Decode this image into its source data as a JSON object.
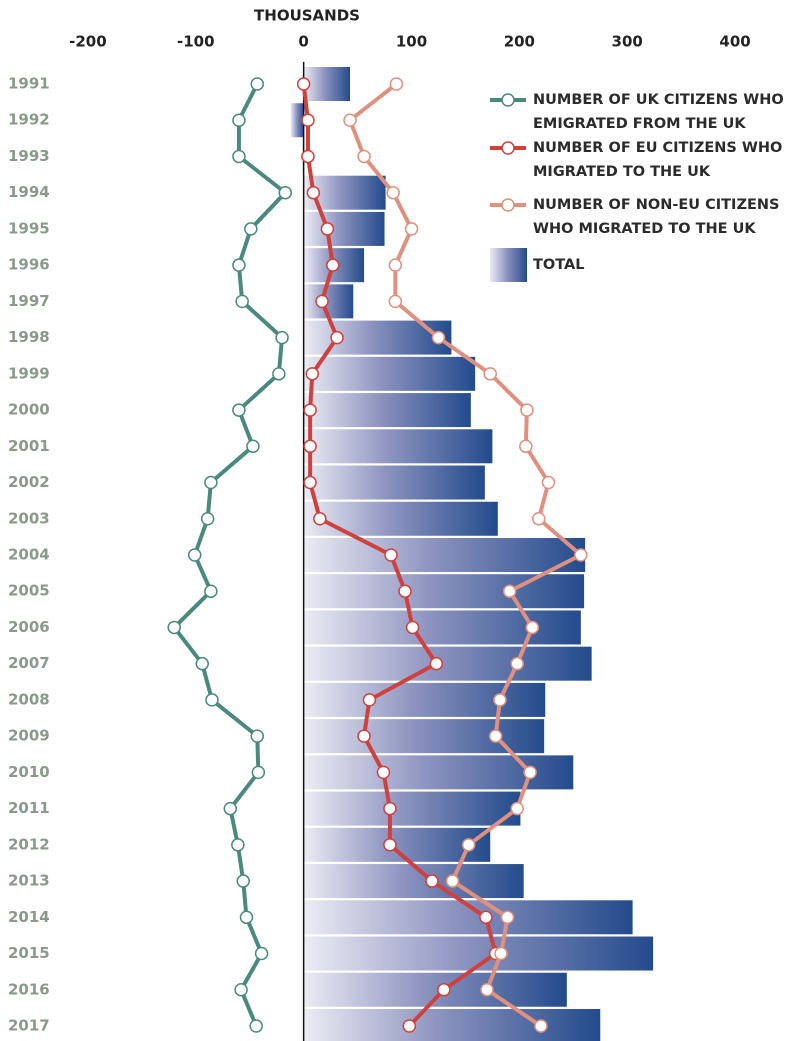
{
  "chart_data": {
    "type": "bar",
    "axis_title": "THOUSANDS",
    "categories": [
      "1991",
      "1992",
      "1993",
      "1994",
      "1995",
      "1996",
      "1997",
      "1998",
      "1999",
      "2000",
      "2001",
      "2002",
      "2003",
      "2004",
      "2005",
      "2006",
      "2007",
      "2008",
      "2009",
      "2010",
      "2011",
      "2012",
      "2013",
      "2014",
      "2015",
      "2016",
      "2017"
    ],
    "xlim": [
      -250,
      450
    ],
    "xticks": [
      -200,
      -100,
      0,
      100,
      200,
      300,
      400
    ],
    "series": [
      {
        "name": "NUMBER OF UK CITIZENS WHO EMIGRATED FROM THE UK",
        "type": "line",
        "color": "#4a8a7e",
        "values": [
          -43,
          -60,
          -60,
          -17,
          -49,
          -60,
          -57,
          -20,
          -23,
          -60,
          -47,
          -86,
          -89,
          -101,
          -86,
          -120,
          -94,
          -85,
          -43,
          -42,
          -68,
          -61,
          -56,
          -53,
          -39,
          -58,
          -44
        ]
      },
      {
        "name": "NUMBER OF EU CITIZENS WHO MIGRATED TO THE UK",
        "type": "line",
        "color": "#d0413d",
        "values": [
          0,
          4,
          4,
          9,
          22,
          27,
          17,
          31,
          8,
          6,
          6,
          6,
          15,
          81,
          94,
          101,
          123,
          61,
          56,
          74,
          80,
          80,
          119,
          169,
          178,
          130,
          98
        ]
      },
      {
        "name": "NUMBER OF NON-EU CITIZENS WHO MIGRATED TO THE UK",
        "type": "line",
        "color": "#e0907f",
        "values": [
          86,
          43,
          56,
          83,
          100,
          85,
          85,
          125,
          173,
          207,
          206,
          227,
          218,
          257,
          191,
          212,
          198,
          182,
          178,
          210,
          198,
          153,
          138,
          189,
          183,
          170,
          220
        ]
      },
      {
        "name": "TOTAL",
        "type": "bar",
        "color": "#234b8c",
        "values": [
          43,
          -12,
          -1,
          76,
          75,
          56,
          46,
          137,
          159,
          155,
          175,
          168,
          180,
          261,
          260,
          257,
          267,
          224,
          223,
          250,
          201,
          173,
          204,
          305,
          324,
          244,
          275
        ]
      }
    ]
  }
}
